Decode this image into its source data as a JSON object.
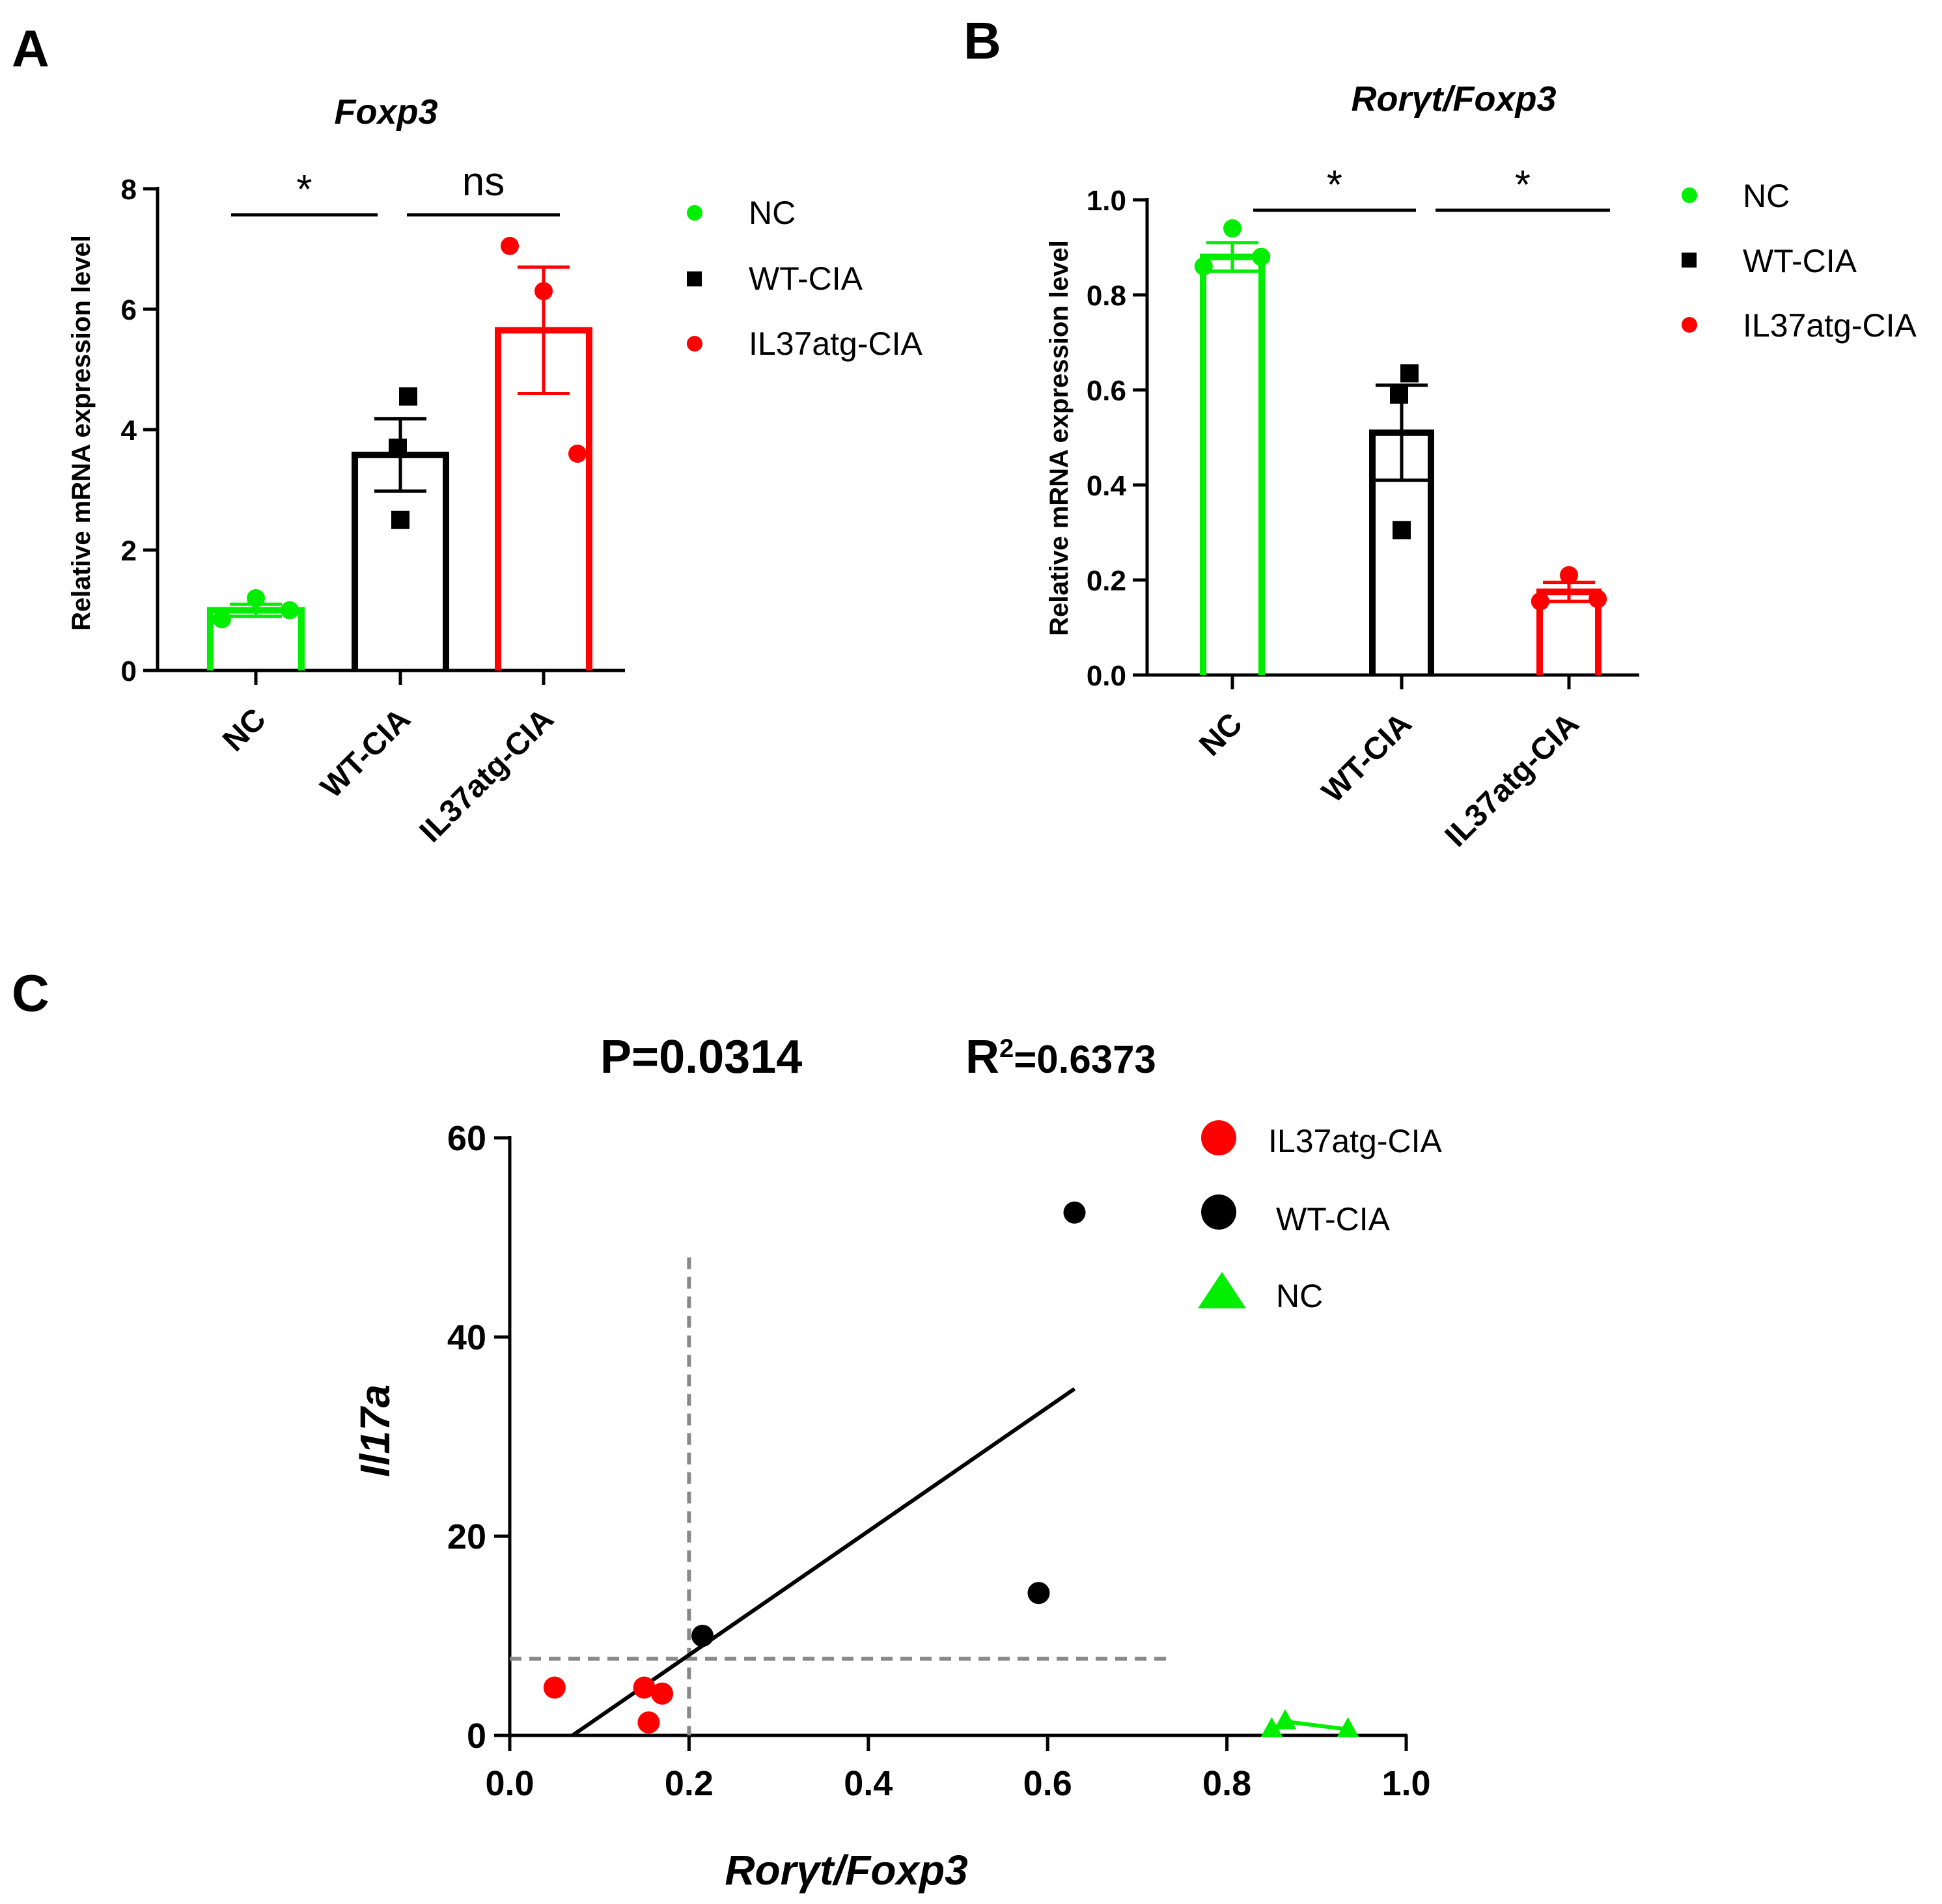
{
  "colors": {
    "NC": "#00ee00",
    "WT-CIA": "#000000",
    "IL37atg-CIA": "#ff0000",
    "refline": "#888888"
  },
  "chart_data": [
    {
      "panel": "A",
      "type": "bar",
      "title": "Foxp3",
      "ylabel": "Relative mRNA expression level",
      "xlabel": "",
      "ylim": [
        0,
        8
      ],
      "yticks": [
        "0",
        "2",
        "4",
        "6",
        "8"
      ],
      "categories": [
        "NC",
        "WT-CIA",
        "IL37atg-CIA"
      ],
      "values": [
        1.0,
        3.58,
        5.65
      ],
      "errors": [
        0.1,
        0.6,
        1.05
      ],
      "points": [
        [
          0.85,
          1.2,
          1.0
        ],
        [
          4.55,
          3.7,
          2.5
        ],
        [
          7.05,
          6.3,
          3.6
        ]
      ],
      "markers": [
        "circle",
        "square",
        "circle"
      ],
      "significance": [
        {
          "label": "*",
          "from": 0,
          "to": 1
        },
        {
          "label": "ns",
          "from": 1,
          "to": 2
        }
      ],
      "legend": [
        "NC",
        "WT-CIA",
        "IL37atg-CIA"
      ],
      "legend_position": "right"
    },
    {
      "panel": "B",
      "type": "bar",
      "title": "Rorγt/Foxp3",
      "ylabel": "Relative mRNA expression level",
      "xlabel": "",
      "ylim": [
        0,
        1.0
      ],
      "yticks": [
        "0.0",
        "0.2",
        "0.4",
        "0.6",
        "0.8",
        "1.0"
      ],
      "categories": [
        "NC",
        "WT-CIA",
        "IL37atg-CIA"
      ],
      "values": [
        0.88,
        0.51,
        0.175
      ],
      "errors": [
        0.03,
        0.1,
        0.02
      ],
      "points": [
        [
          0.86,
          0.94,
          0.88
        ],
        [
          0.635,
          0.59,
          0.305
        ],
        [
          0.155,
          0.21,
          0.16
        ]
      ],
      "markers": [
        "circle",
        "square",
        "circle"
      ],
      "significance": [
        {
          "label": "*",
          "from": 0,
          "to": 1
        },
        {
          "label": "*",
          "from": 1,
          "to": 2
        }
      ],
      "legend": [
        "NC",
        "WT-CIA",
        "IL37atg-CIA"
      ],
      "legend_position": "right"
    },
    {
      "panel": "C",
      "type": "scatter",
      "title": "",
      "stats": {
        "p": "P=0.0314",
        "r2_prefix": "R",
        "r2_sup": "2",
        "r2_value": "=0.6373"
      },
      "xlabel": "Rorγt/Foxp3",
      "ylabel": "Il17a",
      "xlim": [
        0,
        1.0
      ],
      "ylim": [
        0,
        60
      ],
      "xticks": [
        "0.0",
        "0.2",
        "0.4",
        "0.6",
        "0.8",
        "1.0"
      ],
      "yticks": [
        "0",
        "20",
        "40",
        "60"
      ],
      "series": [
        {
          "name": "IL37atg-CIA",
          "marker": "circle",
          "x": [
            0.05,
            0.15,
            0.17,
            0.155
          ],
          "y": [
            4.8,
            4.8,
            4.2,
            1.3
          ]
        },
        {
          "name": "WT-CIA",
          "marker": "circle",
          "x": [
            0.63,
            0.59,
            0.215
          ],
          "y": [
            52.5,
            14.3,
            10.0
          ]
        },
        {
          "name": "NC",
          "marker": "triangle",
          "x": [
            0.85,
            0.865,
            0.935
          ],
          "y": [
            0.6,
            1.4,
            0.6
          ]
        }
      ],
      "fit_line": {
        "x": [
          0.07,
          0.63
        ],
        "y": [
          0,
          34.8
        ]
      },
      "ref_lines": {
        "vertical_x": 0.2,
        "vertical_y_max": 48,
        "horizontal_y": 7.7,
        "horizontal_x_max": 0.74
      },
      "legend": [
        "IL37atg-CIA",
        "WT-CIA",
        "NC"
      ],
      "legend_position": "top-right"
    }
  ]
}
